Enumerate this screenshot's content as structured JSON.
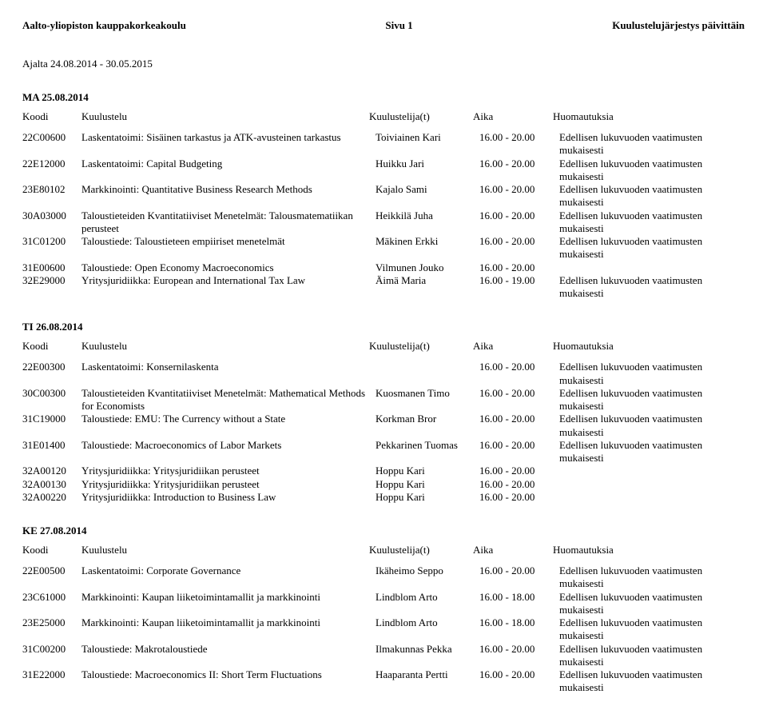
{
  "header": {
    "left": "Aalto-yliopiston kauppakorkeakoulu",
    "center": "Sivu 1",
    "right": "Kuulustelujärjestys päivittäin"
  },
  "dateRange": "Ajalta 24.08.2014 - 30.05.2015",
  "columns": {
    "code": "Koodi",
    "exam": "Kuulustelu",
    "examiner": "Kuulustelija(t)",
    "time": "Aika",
    "notes": "Huomautuksia"
  },
  "days": [
    {
      "heading": "MA  25.08.2014",
      "rows": [
        {
          "code": "22C00600",
          "exam": "Laskentatoimi: Sisäinen tarkastus ja ATK-avusteinen tarkastus",
          "examiner": "Toiviainen Kari",
          "time": "16.00 - 20.00",
          "notes": "Edellisen lukuvuoden vaatimusten mukaisesti"
        },
        {
          "code": "22E12000",
          "exam": "Laskentatoimi: Capital Budgeting",
          "examiner": "Huikku Jari",
          "time": "16.00 - 20.00",
          "notes": "Edellisen lukuvuoden vaatimusten mukaisesti"
        },
        {
          "code": "23E80102",
          "exam": "Markkinointi: Quantitative Business Research Methods",
          "examiner": "Kajalo Sami",
          "time": "16.00 - 20.00",
          "notes": "Edellisen lukuvuoden vaatimusten mukaisesti"
        },
        {
          "code": "30A03000",
          "exam": "Taloustieteiden Kvantitatiiviset Menetelmät: Talousmatematiikan perusteet",
          "examiner": "Heikkilä Juha",
          "time": "16.00 - 20.00",
          "notes": "Edellisen lukuvuoden vaatimusten mukaisesti"
        },
        {
          "code": "31C01200",
          "exam": "Taloustiede: Taloustieteen empiiriset menetelmät",
          "examiner": "Mäkinen Erkki",
          "time": "16.00 - 20.00",
          "notes": "Edellisen lukuvuoden vaatimusten mukaisesti"
        },
        {
          "code": "31E00600",
          "exam": "Taloustiede: Open Economy Macroeconomics",
          "examiner": "Vilmunen Jouko",
          "time": "16.00 - 20.00",
          "notes": ""
        },
        {
          "code": "32E29000",
          "exam": "Yritysjuridiikka: European and International Tax Law",
          "examiner": "Äimä Maria",
          "time": "16.00 - 19.00",
          "notes": "Edellisen lukuvuoden vaatimusten mukaisesti"
        }
      ]
    },
    {
      "heading": "TI  26.08.2014",
      "rows": [
        {
          "code": "22E00300",
          "exam": "Laskentatoimi: Konsernilaskenta",
          "examiner": "",
          "time": "16.00 - 20.00",
          "notes": "Edellisen lukuvuoden vaatimusten mukaisesti"
        },
        {
          "code": "30C00300",
          "exam": "Taloustieteiden Kvantitatiiviset Menetelmät: Mathematical Methods for Economists",
          "examiner": "Kuosmanen Timo",
          "time": "16.00 - 20.00",
          "notes": "Edellisen lukuvuoden vaatimusten mukaisesti"
        },
        {
          "code": "31C19000",
          "exam": "Taloustiede: EMU: The Currency without a State",
          "examiner": "Korkman Bror",
          "time": "16.00 - 20.00",
          "notes": "Edellisen lukuvuoden vaatimusten mukaisesti"
        },
        {
          "code": "31E01400",
          "exam": "Taloustiede: Macroeconomics of Labor Markets",
          "examiner": "Pekkarinen Tuomas",
          "time": "16.00 - 20.00",
          "notes": "Edellisen lukuvuoden vaatimusten mukaisesti"
        },
        {
          "code": "32A00120",
          "exam": "Yritysjuridiikka: Yritysjuridiikan perusteet",
          "examiner": "Hoppu Kari",
          "time": "16.00 - 20.00",
          "notes": ""
        },
        {
          "code": "32A00130",
          "exam": "Yritysjuridiikka: Yritysjuridiikan perusteet",
          "examiner": "Hoppu Kari",
          "time": "16.00 - 20.00",
          "notes": ""
        },
        {
          "code": "32A00220",
          "exam": "Yritysjuridiikka: Introduction to Business Law",
          "examiner": "Hoppu Kari",
          "time": "16.00 - 20.00",
          "notes": ""
        }
      ]
    },
    {
      "heading": "KE  27.08.2014",
      "rows": [
        {
          "code": "22E00500",
          "exam": "Laskentatoimi: Corporate Governance",
          "examiner": "Ikäheimo Seppo",
          "time": "16.00 - 20.00",
          "notes": "Edellisen lukuvuoden vaatimusten mukaisesti"
        },
        {
          "code": "23C61000",
          "exam": "Markkinointi: Kaupan liiketoimintamallit ja markkinointi",
          "examiner": "Lindblom Arto",
          "time": "16.00 - 18.00",
          "notes": "Edellisen lukuvuoden vaatimusten mukaisesti"
        },
        {
          "code": "23E25000",
          "exam": "Markkinointi: Kaupan liiketoimintamallit ja markkinointi",
          "examiner": "Lindblom Arto",
          "time": "16.00 - 18.00",
          "notes": "Edellisen lukuvuoden vaatimusten mukaisesti"
        },
        {
          "code": "31C00200",
          "exam": "Taloustiede: Makrotaloustiede",
          "examiner": "Ilmakunnas Pekka",
          "time": "16.00 - 20.00",
          "notes": "Edellisen lukuvuoden vaatimusten mukaisesti"
        },
        {
          "code": "31E22000",
          "exam": "Taloustiede: Macroeconomics II: Short Term Fluctuations",
          "examiner": "Haaparanta Pertti",
          "time": "16.00 - 20.00",
          "notes": "Edellisen lukuvuoden vaatimusten mukaisesti"
        }
      ]
    }
  ]
}
